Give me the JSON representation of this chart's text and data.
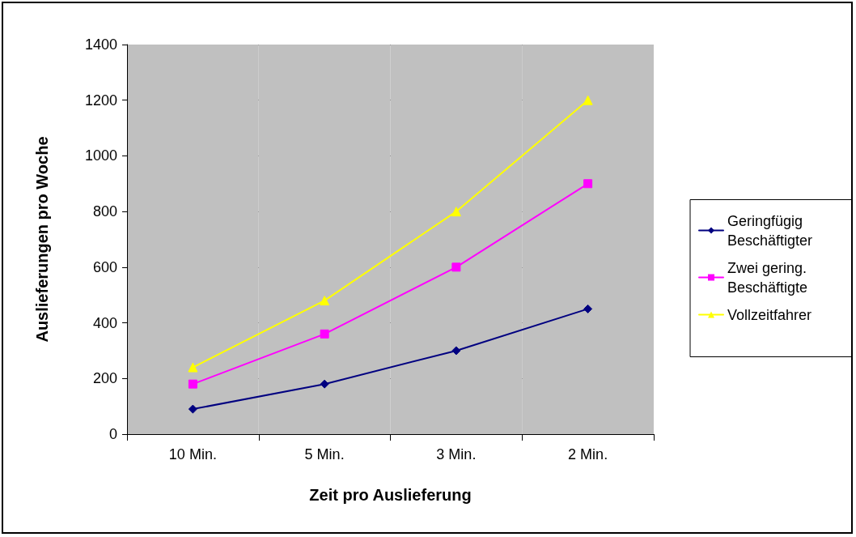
{
  "chart_data": {
    "type": "line",
    "xlabel": "Zeit pro Auslieferung",
    "ylabel": "Auslieferungen pro Woche",
    "categories": [
      "10 Min.",
      "5 Min.",
      "3 Min.",
      "2 Min."
    ],
    "series": [
      {
        "name": "Geringfügig Beschäftigter",
        "color": "#000080",
        "marker": "diamond",
        "values": [
          90,
          180,
          300,
          450
        ]
      },
      {
        "name": "Zwei gering. Beschäftigte",
        "color": "#ff00ff",
        "marker": "square",
        "values": [
          180,
          360,
          600,
          900
        ]
      },
      {
        "name": "Vollzeitfahrer",
        "color": "#ffff00",
        "marker": "triangle",
        "values": [
          240,
          480,
          800,
          1200
        ]
      }
    ],
    "ylim": [
      0,
      1400
    ],
    "yticks": [
      0,
      200,
      400,
      600,
      800,
      1000,
      1200,
      1400
    ],
    "grid": "y",
    "legend": "right",
    "line_style": "solid"
  }
}
